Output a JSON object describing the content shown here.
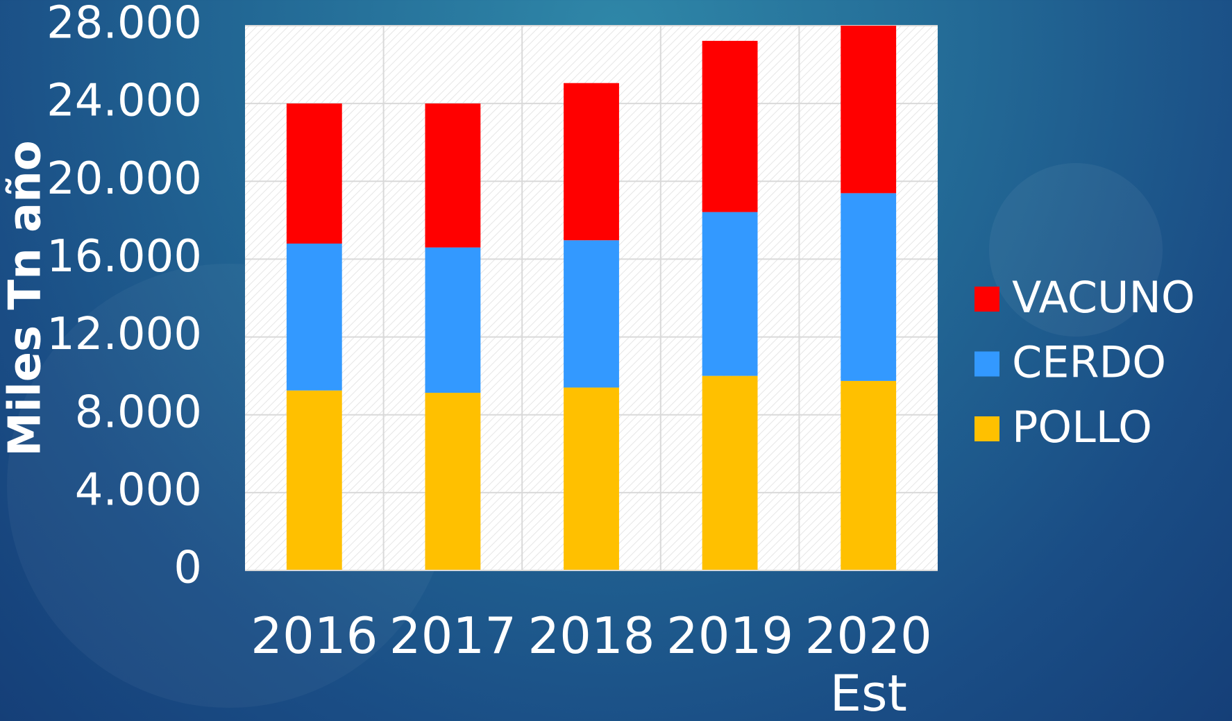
{
  "chart_data": {
    "type": "stacked_bar",
    "y_label": "Miles Tn año",
    "categories": [
      "2016",
      "2017",
      "2018",
      "2019",
      "2020 Est"
    ],
    "series": [
      {
        "name": "POLLO",
        "color": "#ffc000",
        "values": [
          9250,
          9130,
          9400,
          10000,
          9740
        ]
      },
      {
        "name": "CERDO",
        "color": "#3399ff",
        "values": [
          7550,
          7470,
          7570,
          8420,
          9650
        ]
      },
      {
        "name": "VACUNO",
        "color": "#ff0000",
        "values": [
          7200,
          7400,
          8080,
          8800,
          8610
        ]
      }
    ],
    "ylim": [
      0,
      28000
    ],
    "yticks": [
      0,
      {
        "value": 4000,
        "label": "4.000"
      },
      {
        "value": 8000,
        "label": "8.000"
      },
      {
        "value": 12000,
        "label": "12.000"
      },
      {
        "value": 16000,
        "label": "16.000"
      },
      {
        "value": 20000,
        "label": "20.000"
      },
      {
        "value": 24000,
        "label": "24.000"
      },
      {
        "value": 28000,
        "label": "28.000"
      }
    ],
    "grid": true,
    "legend": "right"
  }
}
